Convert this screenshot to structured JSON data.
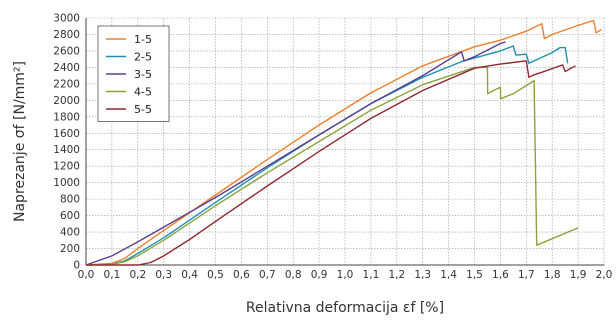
{
  "chart_data": {
    "type": "line",
    "xlabel": "Relativna deformacija εf [%]",
    "ylabel": "Naprezanje σf [N/mm²]",
    "xlim": [
      0,
      2.0
    ],
    "ylim": [
      0,
      3000
    ],
    "x_ticks": [
      "0,0",
      "0,1",
      "0,2",
      "0,3",
      "0,4",
      "0,5",
      "0,6",
      "0,7",
      "0,8",
      "0,9",
      "1,0",
      "1,1",
      "1,2",
      "1,3",
      "1,4",
      "1,5",
      "1,6",
      "1,7",
      "1,8",
      "1,9",
      "2,0"
    ],
    "y_ticks": [
      "0",
      "200",
      "400",
      "600",
      "800",
      "1000",
      "1200",
      "1400",
      "1600",
      "1800",
      "2000",
      "2200",
      "2400",
      "2600",
      "2800",
      "3000"
    ],
    "grid": true,
    "legend_position": "top-left",
    "series": [
      {
        "name": "1-5",
        "color": "#f07f2b",
        "points": [
          [
            0,
            0
          ],
          [
            0.1,
            20
          ],
          [
            0.15,
            80
          ],
          [
            0.2,
            200
          ],
          [
            0.3,
            420
          ],
          [
            0.5,
            850
          ],
          [
            0.7,
            1280
          ],
          [
            0.9,
            1700
          ],
          [
            1.1,
            2090
          ],
          [
            1.3,
            2420
          ],
          [
            1.5,
            2650
          ],
          [
            1.6,
            2730
          ],
          [
            1.7,
            2840
          ],
          [
            1.76,
            2930
          ],
          [
            1.77,
            2750
          ],
          [
            1.8,
            2800
          ],
          [
            1.9,
            2910
          ],
          [
            1.96,
            2970
          ],
          [
            1.97,
            2820
          ],
          [
            1.99,
            2860
          ]
        ]
      },
      {
        "name": "2-5",
        "color": "#1e90b6",
        "points": [
          [
            0,
            0
          ],
          [
            0.1,
            10
          ],
          [
            0.15,
            50
          ],
          [
            0.2,
            140
          ],
          [
            0.3,
            330
          ],
          [
            0.5,
            760
          ],
          [
            0.7,
            1180
          ],
          [
            0.9,
            1580
          ],
          [
            1.1,
            1960
          ],
          [
            1.3,
            2280
          ],
          [
            1.45,
            2470
          ],
          [
            1.6,
            2600
          ],
          [
            1.65,
            2660
          ],
          [
            1.66,
            2550
          ],
          [
            1.7,
            2560
          ],
          [
            1.71,
            2450
          ],
          [
            1.8,
            2580
          ],
          [
            1.83,
            2640
          ],
          [
            1.85,
            2640
          ],
          [
            1.86,
            2450
          ]
        ]
      },
      {
        "name": "3-5",
        "color": "#5b3d8f",
        "points": [
          [
            0,
            0
          ],
          [
            0.1,
            110
          ],
          [
            0.2,
            280
          ],
          [
            0.3,
            460
          ],
          [
            0.4,
            640
          ],
          [
            0.5,
            820
          ],
          [
            0.7,
            1200
          ],
          [
            0.9,
            1580
          ],
          [
            1.1,
            1960
          ],
          [
            1.3,
            2300
          ],
          [
            1.45,
            2590
          ],
          [
            1.46,
            2480
          ],
          [
            1.5,
            2530
          ],
          [
            1.6,
            2690
          ],
          [
            1.62,
            2710
          ]
        ]
      },
      {
        "name": "4-5",
        "color": "#8aa33a",
        "points": [
          [
            0,
            0
          ],
          [
            0.1,
            10
          ],
          [
            0.15,
            40
          ],
          [
            0.2,
            110
          ],
          [
            0.3,
            300
          ],
          [
            0.5,
            720
          ],
          [
            0.7,
            1120
          ],
          [
            0.9,
            1500
          ],
          [
            1.1,
            1880
          ],
          [
            1.3,
            2190
          ],
          [
            1.5,
            2400
          ],
          [
            1.55,
            2400
          ],
          [
            1.551,
            2080
          ],
          [
            1.58,
            2130
          ],
          [
            1.6,
            2160
          ],
          [
            1.601,
            2020
          ],
          [
            1.65,
            2080
          ],
          [
            1.73,
            2240
          ],
          [
            1.74,
            240
          ],
          [
            1.8,
            320
          ],
          [
            1.9,
            450
          ]
        ]
      },
      {
        "name": "5-5",
        "color": "#8f2a2e",
        "points": [
          [
            0,
            0
          ],
          [
            0.2,
            0
          ],
          [
            0.25,
            30
          ],
          [
            0.3,
            110
          ],
          [
            0.4,
            310
          ],
          [
            0.5,
            530
          ],
          [
            0.7,
            960
          ],
          [
            0.9,
            1380
          ],
          [
            1.1,
            1780
          ],
          [
            1.3,
            2120
          ],
          [
            1.5,
            2390
          ],
          [
            1.6,
            2440
          ],
          [
            1.7,
            2480
          ],
          [
            1.71,
            2280
          ],
          [
            1.73,
            2310
          ],
          [
            1.76,
            2340
          ],
          [
            1.84,
            2430
          ],
          [
            1.85,
            2350
          ],
          [
            1.89,
            2420
          ]
        ]
      }
    ]
  }
}
